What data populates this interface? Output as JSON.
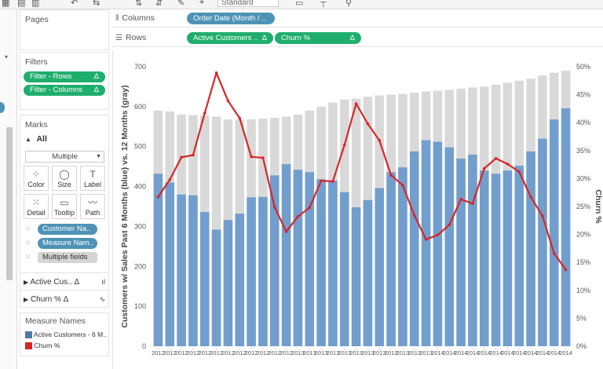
{
  "toolbar": {
    "dropdown_value": "Standard",
    "icons": [
      "grid-icon",
      "undo-icon",
      "swap-icon",
      "sort-asc-icon",
      "sort-desc-icon",
      "pin-icon",
      "present-icon",
      "label-icon",
      "share-icon"
    ]
  },
  "pages_panel": {
    "title": "Pages"
  },
  "filters_panel": {
    "title": "Filters",
    "items": [
      {
        "label": "Filter - Rows",
        "delta": "Δ"
      },
      {
        "label": "Filter - Columns",
        "delta": "Δ"
      }
    ]
  },
  "marks_panel": {
    "title": "Marks",
    "all_label": "All",
    "type_select": "Multiple",
    "buttons": [
      {
        "label": "Color",
        "icon": "color-dots-icon"
      },
      {
        "label": "Size",
        "icon": "size-icon"
      },
      {
        "label": "Label",
        "icon": "text-icon"
      },
      {
        "label": "Detail",
        "icon": "detail-dots-icon"
      },
      {
        "label": "Tooltip",
        "icon": "tooltip-icon"
      },
      {
        "label": "Path",
        "icon": "path-icon"
      }
    ],
    "fields": [
      {
        "label": "Customer Na..",
        "style": "blue"
      },
      {
        "label": "Measure Nam..",
        "style": "blue"
      },
      {
        "label": "Multiple fields",
        "style": "grey"
      }
    ],
    "sub_cards": [
      {
        "label": "Active Cus..",
        "delta": "Δ"
      },
      {
        "label": "Churn %",
        "delta": "Δ"
      }
    ]
  },
  "measure_names_legend": {
    "title": "Measure Names",
    "items": [
      {
        "label": "Active Customers - 6 M..",
        "color": "#4e79a7"
      },
      {
        "label": "Churn %",
        "color": "#d62728"
      }
    ]
  },
  "columns_shelf": {
    "label": "Columns",
    "pill": "Order Date (Month / .."
  },
  "rows_shelf": {
    "label": "Rows",
    "pills": [
      {
        "label": "Active Customers ..",
        "delta": "Δ"
      },
      {
        "label": "Churn %",
        "delta": "Δ"
      }
    ]
  },
  "chart_data": {
    "type": "bar",
    "title": "",
    "ylabel": "Customers w/ Sales Past 6 Months (blue) vs. 12 Months (gray)",
    "y2label": "Churn %",
    "ylim": [
      0,
      700
    ],
    "y2lim": [
      0,
      50
    ],
    "yticks": [
      0,
      100,
      200,
      300,
      400,
      500,
      600,
      700
    ],
    "y2ticks": [
      "0%",
      "5%",
      "10%",
      "15%",
      "20%",
      "25%",
      "30%",
      "35%",
      "40%",
      "45%",
      "50%"
    ],
    "categories": [
      "2012",
      "2012",
      "2012",
      "2012",
      "2012",
      "2012",
      "2012",
      "2012",
      "2012",
      "2012",
      "2012",
      "2012",
      "2013",
      "2013",
      "2013",
      "2013",
      "2013",
      "2013",
      "2013",
      "2013",
      "2013",
      "2013",
      "2013",
      "2013",
      "2014",
      "2014",
      "2014",
      "2014",
      "2014",
      "2014",
      "2014",
      "2014",
      "2014",
      "2014",
      "2014",
      "2014"
    ],
    "series": [
      {
        "name": "Customers 12 Months",
        "color": "#d9d9d9",
        "values": [
          590,
          588,
          580,
          579,
          578,
          575,
          568,
          568,
          568,
          570,
          572,
          575,
          580,
          590,
          600,
          610,
          618,
          620,
          625,
          628,
          630,
          632,
          635,
          638,
          640,
          642,
          645,
          648,
          650,
          655,
          660,
          665,
          670,
          678,
          685,
          690
        ]
      },
      {
        "name": "Active Customers - 6 M..",
        "color": "#729ece",
        "values": [
          432,
          410,
          380,
          378,
          336,
          292,
          316,
          332,
          373,
          374,
          428,
          456,
          442,
          436,
          418,
          415,
          386,
          348,
          366,
          396,
          436,
          448,
          488,
          516,
          512,
          498,
          470,
          480,
          440,
          432,
          440,
          452,
          488,
          520,
          568,
          596
        ]
      },
      {
        "name": "Churn %",
        "color": "#d62728",
        "values": [
          26.7,
          29.8,
          33.8,
          34.2,
          41.7,
          48.9,
          43.9,
          40.8,
          33.9,
          33.7,
          24.9,
          20.5,
          23.2,
          24.8,
          29.6,
          29.5,
          36.0,
          43.4,
          39.8,
          36.8,
          30.6,
          28.8,
          23.4,
          19.1,
          19.9,
          21.7,
          26.3,
          25.5,
          31.8,
          33.6,
          32.6,
          31.2,
          26.7,
          23.3,
          16.6,
          13.7
        ]
      }
    ]
  }
}
